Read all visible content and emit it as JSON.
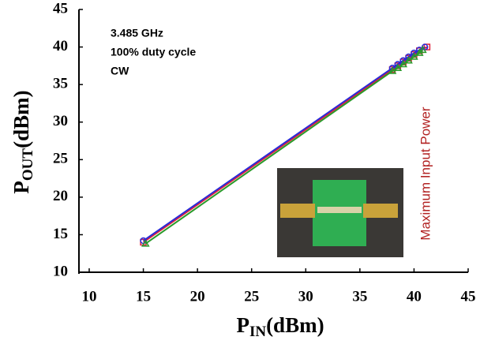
{
  "chart_data": {
    "type": "line",
    "xlabel": {
      "main": "P",
      "sub": "IN",
      "unit": "(dBm)"
    },
    "ylabel": {
      "main": "P",
      "sub": "OUT",
      "unit": "(dBm)"
    },
    "annotations": [
      "3.485 GHz",
      "100% duty cycle",
      "CW"
    ],
    "limit_label": {
      "text": "Maximum Input Power",
      "color": "#b22222"
    },
    "xlim": [
      10,
      45
    ],
    "xticks": [
      10,
      15,
      20,
      25,
      30,
      35,
      40,
      45
    ],
    "ylim": [
      10,
      45
    ],
    "yticks": [
      10,
      15,
      20,
      25,
      30,
      35,
      40,
      45
    ],
    "series": [
      {
        "color": "#e0203a",
        "marker": "square",
        "x": [
          15,
          38,
          38.5,
          39,
          39.5,
          40,
          40.5,
          41.2
        ],
        "values": [
          14.0,
          37.0,
          37.5,
          38.0,
          38.5,
          39.0,
          39.5,
          40.0
        ]
      },
      {
        "color": "#2a2ad8",
        "marker": "circle",
        "x": [
          15,
          38,
          38.5,
          39,
          39.5,
          40,
          40.5,
          41
        ],
        "values": [
          14.2,
          37.2,
          37.7,
          38.2,
          38.7,
          39.2,
          39.6,
          40.0
        ]
      },
      {
        "color": "#2a9a2a",
        "marker": "triangle",
        "x": [
          15.2,
          38,
          38.5,
          39,
          39.5,
          40,
          40.5,
          40.8
        ],
        "values": [
          13.8,
          36.8,
          37.2,
          37.7,
          38.2,
          38.7,
          39.2,
          39.6
        ]
      }
    ]
  }
}
